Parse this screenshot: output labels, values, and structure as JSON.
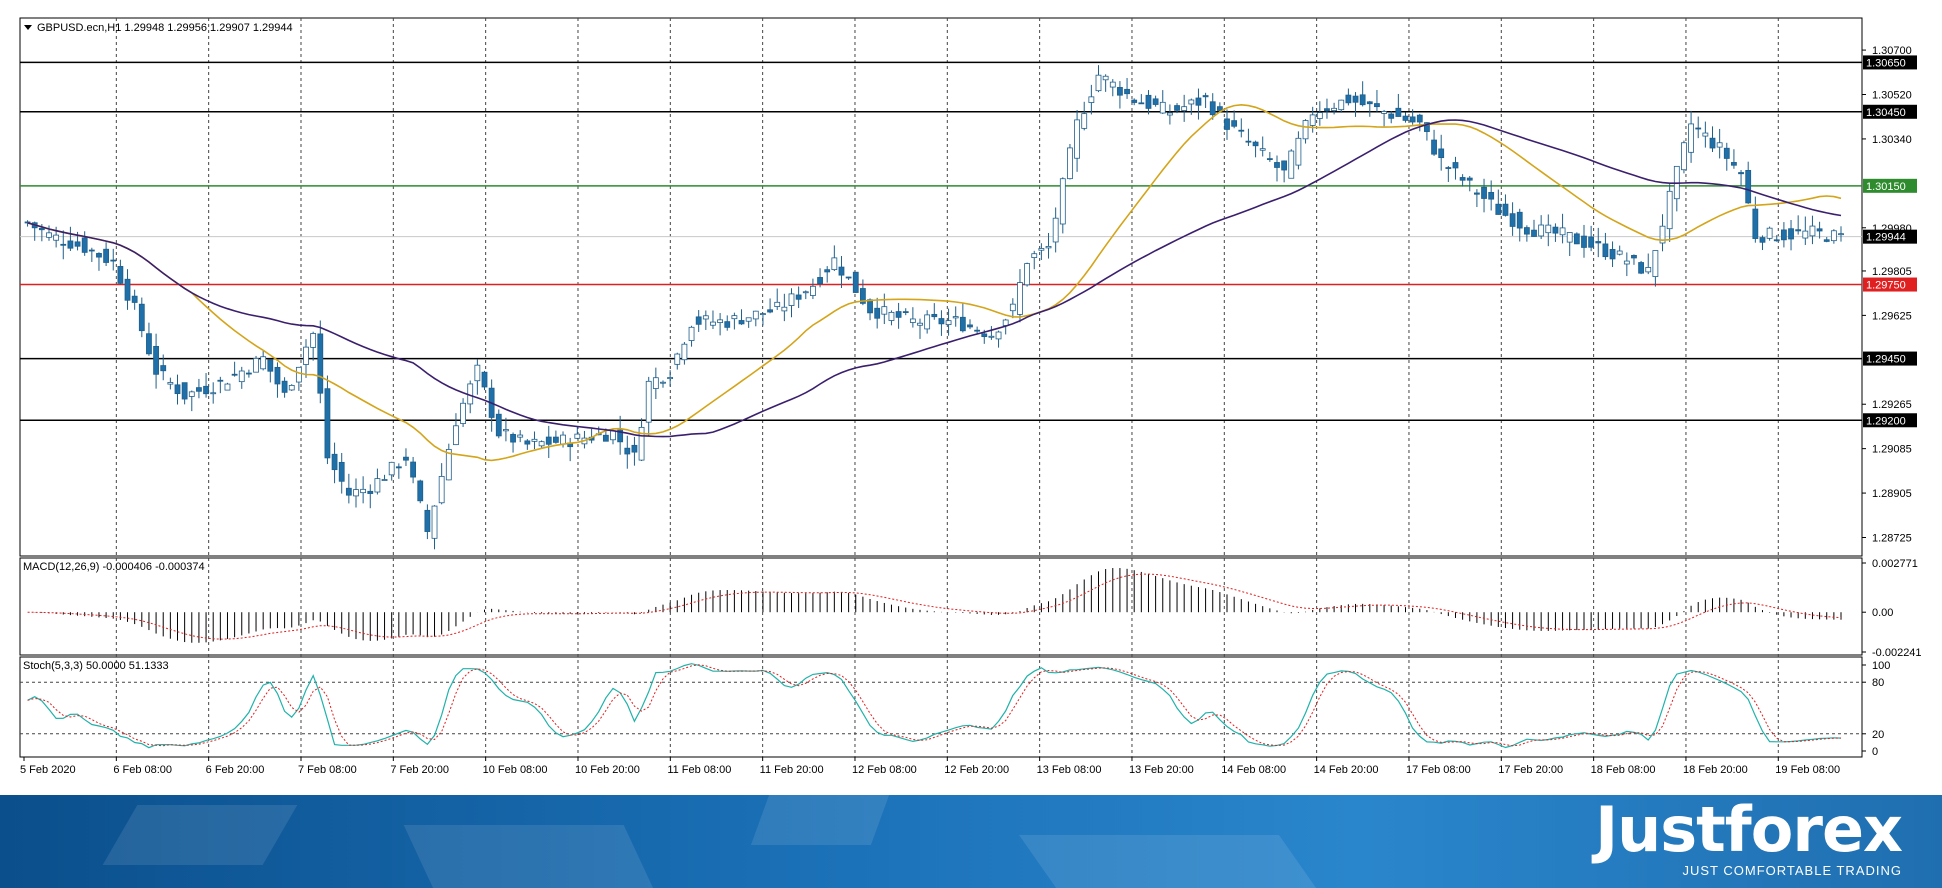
{
  "chart_data": [
    {
      "type": "candlestick",
      "title": "GBPUSD.ecn,H1  1.29948 1.29956 1.29907 1.29944",
      "symbol": "GBPUSD.ecn",
      "timeframe": "H1",
      "ohlc_readout": [
        1.29948,
        1.29956,
        1.29907,
        1.29944
      ],
      "current_price": 1.29944,
      "y_ticks": [
        1.307,
        1.3052,
        1.3034,
        1.2998,
        1.29805,
        1.29625,
        1.29265,
        1.29085,
        1.28905,
        1.28725
      ],
      "y_tick_labels": [
        "1.30700",
        "1.30520",
        "1.30340",
        "1.29980",
        "1.29805",
        "1.29625",
        "1.29265",
        "1.29085",
        "1.28905",
        "1.28725"
      ],
      "ylim": [
        1.2865,
        1.3083
      ],
      "x_labels": [
        "5 Feb 2020",
        "6 Feb 08:00",
        "6 Feb 20:00",
        "7 Feb 08:00",
        "7 Feb 20:00",
        "10 Feb 08:00",
        "10 Feb 20:00",
        "11 Feb 08:00",
        "11 Feb 20:00",
        "12 Feb 08:00",
        "12 Feb 20:00",
        "13 Feb 08:00",
        "13 Feb 20:00",
        "14 Feb 08:00",
        "14 Feb 20:00",
        "17 Feb 08:00",
        "17 Feb 20:00",
        "18 Feb 08:00",
        "18 Feb 20:00",
        "19 Feb 08:00"
      ],
      "horizontal_levels": [
        {
          "value": 1.3065,
          "label": "1.30650",
          "color": "#000000"
        },
        {
          "value": 1.3045,
          "label": "1.30450",
          "color": "#000000"
        },
        {
          "value": 1.3015,
          "label": "1.30150",
          "color": "#2e8b2e"
        },
        {
          "value": 1.29944,
          "label": "1.29944",
          "color": "#000000"
        },
        {
          "value": 1.2975,
          "label": "1.29750",
          "color": "#e02020"
        },
        {
          "value": 1.2945,
          "label": "1.29450",
          "color": "#000000"
        },
        {
          "value": 1.292,
          "label": "1.29200",
          "color": "#000000"
        }
      ],
      "price_path": [
        [
          0,
          1.3
        ],
        [
          3,
          1.2995
        ],
        [
          8,
          1.299
        ],
        [
          12,
          1.2984
        ],
        [
          15,
          1.2965
        ],
        [
          18,
          1.294
        ],
        [
          22,
          1.293
        ],
        [
          27,
          1.2935
        ],
        [
          30,
          1.294
        ],
        [
          33,
          1.2945
        ],
        [
          36,
          1.293
        ],
        [
          39,
          1.295
        ],
        [
          40,
          1.2955
        ],
        [
          42,
          1.2905
        ],
        [
          45,
          1.289
        ],
        [
          48,
          1.2893
        ],
        [
          53,
          1.2905
        ],
        [
          56,
          1.2875
        ],
        [
          60,
          1.292
        ],
        [
          63,
          1.294
        ],
        [
          66,
          1.2915
        ],
        [
          70,
          1.291
        ],
        [
          76,
          1.2912
        ],
        [
          82,
          1.2915
        ],
        [
          85,
          1.2905
        ],
        [
          87,
          1.2935
        ],
        [
          90,
          1.294
        ],
        [
          93,
          1.296
        ],
        [
          98,
          1.296
        ],
        [
          105,
          1.2965
        ],
        [
          110,
          1.2975
        ],
        [
          113,
          1.2985
        ],
        [
          118,
          1.2965
        ],
        [
          124,
          1.296
        ],
        [
          130,
          1.296
        ],
        [
          135,
          1.2955
        ],
        [
          138,
          1.2965
        ],
        [
          140,
          1.2985
        ],
        [
          143,
          1.299
        ],
        [
          147,
          1.304
        ],
        [
          150,
          1.306
        ],
        [
          155,
          1.305
        ],
        [
          160,
          1.3045
        ],
        [
          165,
          1.305
        ],
        [
          168,
          1.304
        ],
        [
          172,
          1.303
        ],
        [
          176,
          1.302
        ],
        [
          180,
          1.3045
        ],
        [
          185,
          1.305
        ],
        [
          190,
          1.3045
        ],
        [
          195,
          1.304
        ],
        [
          198,
          1.3025
        ],
        [
          202,
          1.3015
        ],
        [
          206,
          1.3005
        ],
        [
          210,
          1.2998
        ],
        [
          215,
          1.2995
        ],
        [
          220,
          1.299
        ],
        [
          224,
          1.2985
        ],
        [
          227,
          1.298
        ],
        [
          230,
          1.301
        ],
        [
          233,
          1.304
        ],
        [
          237,
          1.303
        ],
        [
          240,
          1.302
        ],
        [
          242,
          1.2995
        ],
        [
          246,
          1.2995
        ],
        [
          250,
          1.2996
        ],
        [
          254,
          1.2994
        ]
      ],
      "series": [
        {
          "name": "",
          "color": "#d4a419",
          "type": "moving-average"
        },
        {
          "name": "",
          "color": "#3a1f6e",
          "type": "moving-average"
        }
      ]
    },
    {
      "type": "bar",
      "title": "MACD(12,26,9) -0.000406 -0.000374",
      "y_tick_labels": [
        "0.002771",
        "0.00",
        "-0.002241"
      ],
      "ylim": [
        -0.002241,
        0.002771
      ],
      "color": "#000000",
      "signal_color": "#e02020"
    },
    {
      "type": "line",
      "title": "Stoch(5,3,3) 50.0000 51.1333",
      "y_tick_labels": [
        "100",
        "80",
        "20",
        "0"
      ],
      "ylim": [
        0,
        100
      ],
      "levels": [
        80,
        20
      ],
      "series": [
        {
          "name": "",
          "color": "#20b2aa"
        },
        {
          "name": "",
          "color": "#e02020"
        }
      ]
    }
  ],
  "brand": {
    "name": "Justforex",
    "tagline": "JUST COMFORTABLE TRADING"
  }
}
